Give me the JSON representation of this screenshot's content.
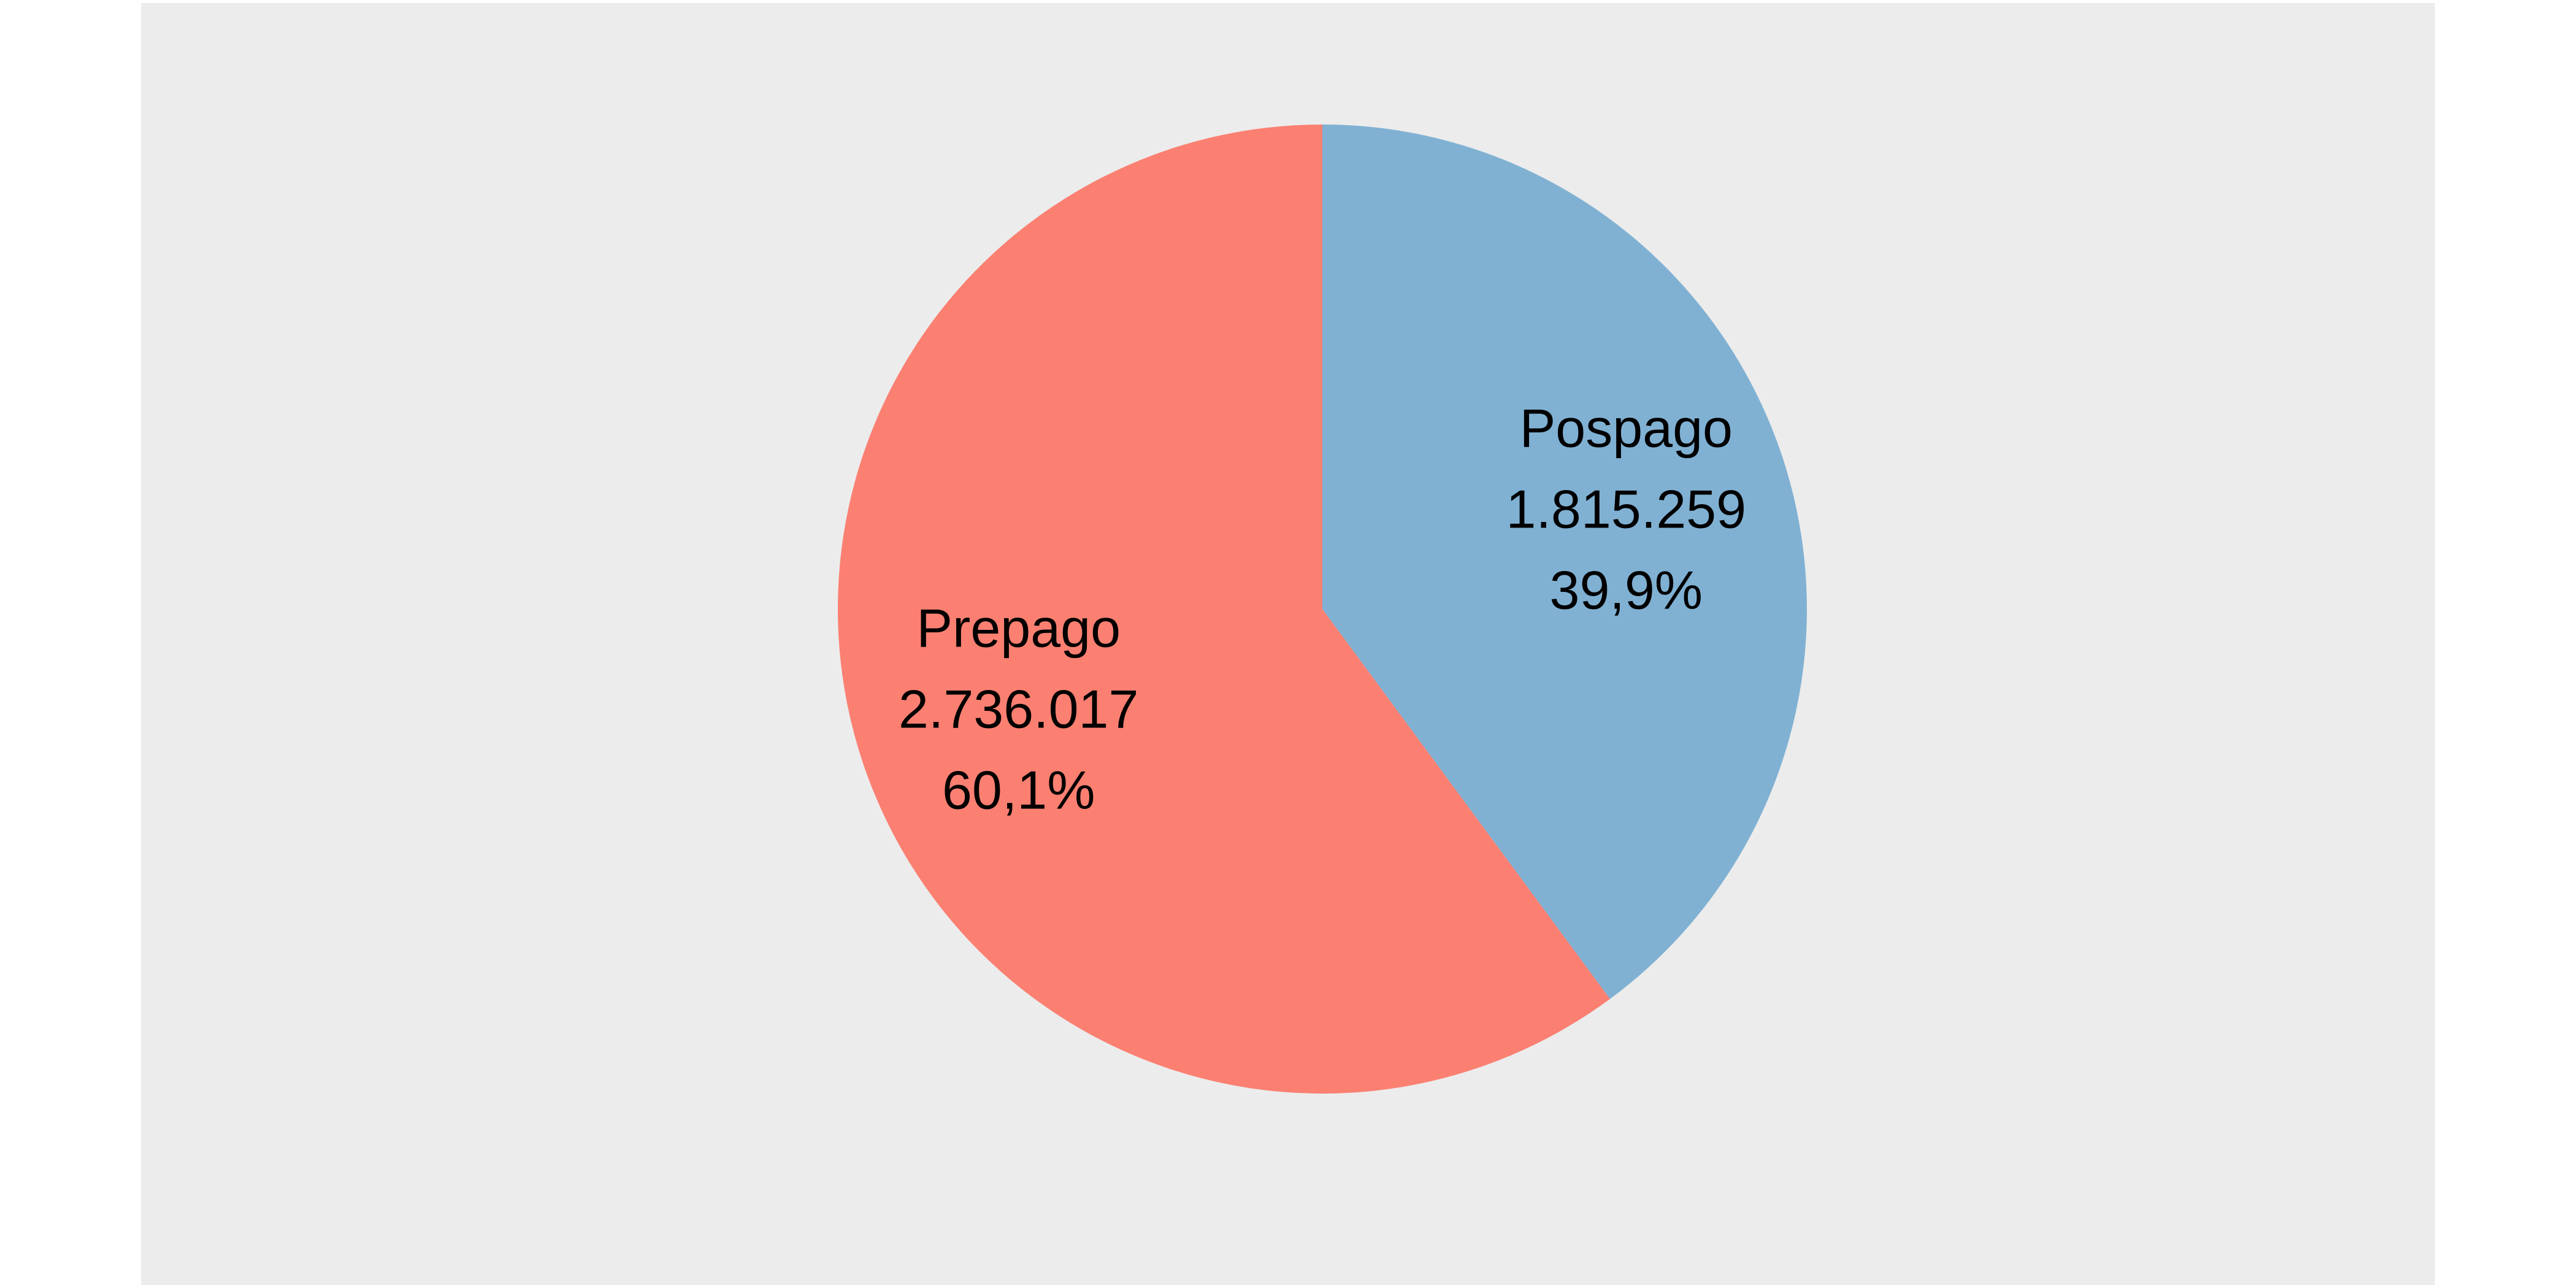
{
  "chart_data": {
    "type": "pie",
    "start_angle": "12 o'clock",
    "direction": "clockwise",
    "slices": [
      {
        "label": "Pospago",
        "value": 1815259,
        "value_label": "1.815.259",
        "percent": 39.9,
        "percent_label": "39,9%",
        "color": "#80b1d3"
      },
      {
        "label": "Prepago",
        "value": 2736017,
        "value_label": "2.736.017",
        "percent": 60.1,
        "percent_label": "60,1%",
        "color": "#fb8072"
      }
    ]
  },
  "colors": {
    "panel_background": "#ececec",
    "page_background": "#ffffff",
    "label_text": "#000000"
  }
}
